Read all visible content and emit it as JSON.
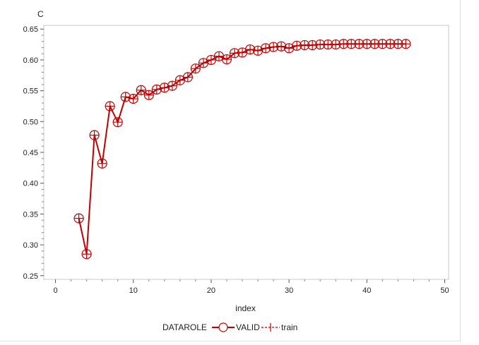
{
  "chart_data": {
    "type": "line",
    "ylabel": "C",
    "xlabel": "index",
    "xlim": [
      -1.5,
      50.5
    ],
    "ylim": [
      0.244,
      0.656
    ],
    "xticks": [
      0,
      10,
      20,
      30,
      40,
      50
    ],
    "yticks": [
      0.25,
      0.3,
      0.35,
      0.4,
      0.45,
      0.5,
      0.55,
      0.6,
      0.65
    ],
    "ytick_labels": [
      "0.25",
      "0.30",
      "0.35",
      "0.40",
      "0.45",
      "0.50",
      "0.55",
      "0.60",
      "0.65"
    ],
    "grid": false,
    "legend": {
      "title": "DATAROLE",
      "position": "bottom",
      "entries": [
        "VALID",
        "train"
      ]
    },
    "series_color": "#c00000",
    "x": [
      3,
      4,
      5,
      6,
      7,
      8,
      9,
      10,
      11,
      12,
      13,
      14,
      15,
      16,
      17,
      18,
      19,
      20,
      21,
      22,
      23,
      24,
      25,
      26,
      27,
      28,
      29,
      30,
      31,
      32,
      33,
      34,
      35,
      36,
      37,
      38,
      39,
      40,
      41,
      42,
      43,
      44,
      45
    ],
    "series": [
      {
        "name": "VALID",
        "marker": "circle-plus",
        "values": [
          0.343,
          0.285,
          0.478,
          0.432,
          0.525,
          0.499,
          0.54,
          0.537,
          0.551,
          0.543,
          0.552,
          0.555,
          0.558,
          0.567,
          0.572,
          0.586,
          0.595,
          0.6,
          0.606,
          0.601,
          0.611,
          0.612,
          0.617,
          0.615,
          0.619,
          0.621,
          0.622,
          0.619,
          0.623,
          0.624,
          0.624,
          0.625,
          0.625,
          0.625,
          0.626,
          0.626,
          0.626,
          0.626,
          0.626,
          0.626,
          0.626,
          0.626,
          0.626
        ]
      },
      {
        "name": "train",
        "marker": "plus",
        "values": [
          0.343,
          0.285,
          0.478,
          0.432,
          0.525,
          0.499,
          0.54,
          0.537,
          0.551,
          0.543,
          0.552,
          0.555,
          0.558,
          0.567,
          0.572,
          0.586,
          0.595,
          0.6,
          0.606,
          0.601,
          0.611,
          0.612,
          0.617,
          0.615,
          0.619,
          0.621,
          0.622,
          0.619,
          0.623,
          0.624,
          0.624,
          0.625,
          0.625,
          0.625,
          0.626,
          0.626,
          0.626,
          0.626,
          0.626,
          0.626,
          0.626,
          0.626,
          0.626
        ]
      }
    ]
  }
}
